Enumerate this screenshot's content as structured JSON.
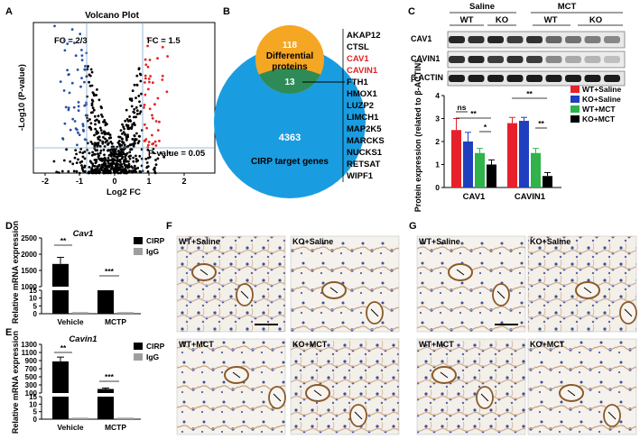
{
  "panels": {
    "A": "A",
    "B": "B",
    "C": "C",
    "D": "D",
    "E": "E",
    "F": "F",
    "G": "G"
  },
  "volcano": {
    "title": "Volcano Plot",
    "xlabel": "Log2 FC",
    "ylabel": "-Log10 (P-value)",
    "x_ticks": [
      "-2",
      "-1",
      "0",
      "1",
      "2"
    ],
    "fc_low_label": "FC = 2/3",
    "fc_high_label": "FC = 1.5",
    "pvalue_label": "P-value = 0.05",
    "colors": {
      "down": "#2a4fa8",
      "up": "#e02424",
      "ns": "#000000"
    }
  },
  "venn": {
    "top_count": "118",
    "top_label_line1": "Differential",
    "top_label_line2": "proteins",
    "overlap_count": "13",
    "bottom_count": "4363",
    "bottom_label": "CIRP target genes",
    "genes": [
      "AKAP12",
      "CTSL",
      "CAV1",
      "CAVIN1",
      "FTH1",
      "HMOX1",
      "LUZP2",
      "LIMCH1",
      "MAP2K5",
      "MARCKS",
      "NUCKS1",
      "RETSAT",
      "WIPF1"
    ],
    "highlight_genes": [
      "CAV1",
      "CAVIN1"
    ],
    "colors": {
      "top": "#f5a623",
      "bottom": "#1a9de0",
      "overlap": "#2e8b57"
    }
  },
  "western": {
    "group_saline": "Saline",
    "group_mct": "MCT",
    "sub_wt_1": "WT",
    "sub_ko_1": "KO",
    "sub_wt_2": "WT",
    "sub_ko_2": "KO",
    "rows": [
      "CAV1",
      "CAVIN1",
      "β-ACTIN"
    ]
  },
  "chart_data": [
    {
      "type": "bar",
      "panel": "C",
      "ylabel": "Protein expression (related to β-ACTIN)",
      "ylim": [
        0,
        4
      ],
      "y_ticks": [
        "0",
        "1",
        "2",
        "3",
        "4"
      ],
      "categories": [
        "CAV1",
        "CAVIN1"
      ],
      "series": [
        {
          "name": "WT+Saline",
          "color": "#e8202a",
          "values": [
            2.5,
            2.8
          ],
          "errors": [
            0.5,
            0.25
          ]
        },
        {
          "name": "KO+Saline",
          "color": "#1f3fbf",
          "values": [
            2.0,
            2.9
          ],
          "errors": [
            0.4,
            0.15
          ]
        },
        {
          "name": "WT+MCT",
          "color": "#2fb34a",
          "values": [
            1.5,
            1.5
          ],
          "errors": [
            0.2,
            0.2
          ]
        },
        {
          "name": "KO+MCT",
          "color": "#000000",
          "values": [
            1.0,
            0.5
          ],
          "errors": [
            0.2,
            0.15
          ]
        }
      ],
      "sig": [
        "ns",
        "**",
        "*",
        "**",
        "**"
      ],
      "legend": "top-right"
    },
    {
      "type": "bar",
      "panel": "D",
      "title": "Cav1",
      "ylabel": "Relative mRNA expression",
      "y_ticks": [
        "0",
        "5",
        "10",
        "15",
        "1000",
        "1500",
        "2000",
        "2500"
      ],
      "categories": [
        "Vehicle",
        "MCTP"
      ],
      "series": [
        {
          "name": "CIRP",
          "color": "#000000",
          "values": [
            1700,
            560
          ]
        },
        {
          "name": "IgG",
          "color": "#9e9e9e",
          "values": [
            1,
            1
          ]
        }
      ],
      "sig": [
        "**",
        "***"
      ],
      "legend": "top-right"
    },
    {
      "type": "bar",
      "panel": "E",
      "title": "Cavin1",
      "ylabel": "Relative mRNA expression",
      "y_ticks": [
        "0",
        "5",
        "10",
        "15",
        "100",
        "300",
        "500",
        "700",
        "900",
        "1100",
        "1300"
      ],
      "categories": [
        "Vehicle",
        "MCTP"
      ],
      "series": [
        {
          "name": "CIRP",
          "color": "#000000",
          "values": [
            880,
            200
          ]
        },
        {
          "name": "IgG",
          "color": "#9e9e9e",
          "values": [
            1,
            1
          ]
        }
      ],
      "sig": [
        "**",
        "***"
      ],
      "legend": "top-right"
    }
  ],
  "histology": {
    "F": [
      "WT+Saline",
      "KO+Saline",
      "WT+MCT",
      "KO+MCT"
    ],
    "G": [
      "WT+Saline",
      "KO+Saline",
      "WT+MCT",
      "KO+MCT"
    ]
  }
}
